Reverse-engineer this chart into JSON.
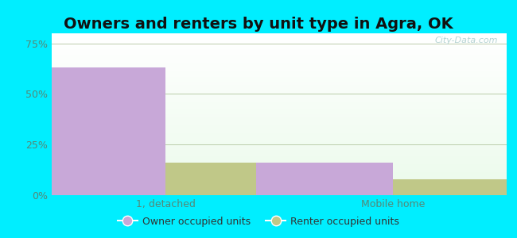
{
  "title": "Owners and renters by unit type in Agra, OK",
  "categories": [
    "1, detached",
    "Mobile home"
  ],
  "owner_values": [
    63.0,
    16.0
  ],
  "renter_values": [
    16.0,
    8.0
  ],
  "owner_color": "#c8a8d8",
  "renter_color": "#c0c888",
  "outer_bg": "#00eeff",
  "yticks": [
    0,
    25,
    50,
    75
  ],
  "ytick_labels": [
    "0%",
    "25%",
    "50%",
    "75%"
  ],
  "ylim": [
    0,
    80
  ],
  "bar_width": 0.3,
  "group_positions": [
    0.25,
    0.75
  ],
  "legend_owner": "Owner occupied units",
  "legend_renter": "Renter occupied units",
  "watermark": "City-Data.com",
  "title_fontsize": 14,
  "tick_fontsize": 9,
  "legend_fontsize": 9,
  "tick_color": "#558877",
  "title_color": "#111111"
}
